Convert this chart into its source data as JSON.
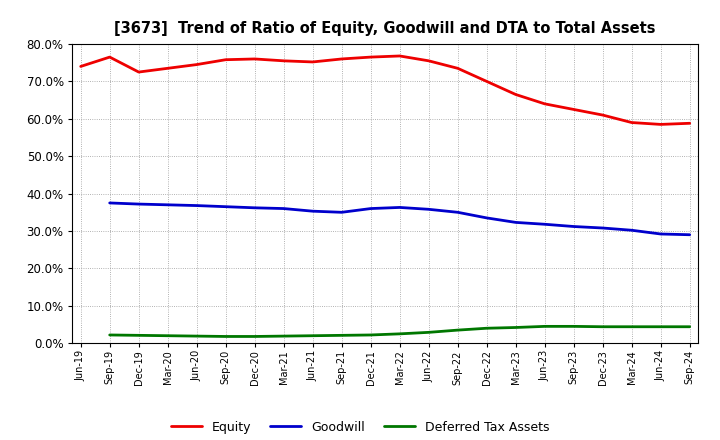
{
  "title": "[3673]  Trend of Ratio of Equity, Goodwill and DTA to Total Assets",
  "x_labels": [
    "Jun-19",
    "Sep-19",
    "Dec-19",
    "Mar-20",
    "Jun-20",
    "Sep-20",
    "Dec-20",
    "Mar-21",
    "Jun-21",
    "Sep-21",
    "Dec-21",
    "Mar-22",
    "Jun-22",
    "Sep-22",
    "Dec-22",
    "Mar-23",
    "Jun-23",
    "Sep-23",
    "Dec-23",
    "Mar-24",
    "Jun-24",
    "Sep-24"
  ],
  "equity": [
    74.0,
    76.5,
    72.5,
    73.5,
    74.5,
    75.8,
    76.0,
    75.5,
    75.2,
    76.0,
    76.5,
    76.8,
    75.5,
    73.5,
    70.0,
    66.5,
    64.0,
    62.5,
    61.0,
    59.0,
    58.5,
    58.8
  ],
  "goodwill": [
    null,
    37.5,
    37.2,
    37.0,
    36.8,
    36.5,
    36.2,
    36.0,
    35.3,
    35.0,
    36.0,
    36.3,
    35.8,
    35.0,
    33.5,
    32.3,
    31.8,
    31.2,
    30.8,
    30.2,
    29.2,
    29.0
  ],
  "dta": [
    null,
    2.2,
    2.1,
    2.0,
    1.9,
    1.8,
    1.8,
    1.9,
    2.0,
    2.1,
    2.2,
    2.5,
    2.9,
    3.5,
    4.0,
    4.2,
    4.5,
    4.5,
    4.4,
    4.4,
    4.4,
    4.4
  ],
  "equity_color": "#EE0000",
  "goodwill_color": "#0000CC",
  "dta_color": "#007700",
  "bg_color": "#FFFFFF",
  "grid_color": "#999999",
  "ylim": [
    0,
    80
  ],
  "yticks": [
    0,
    10,
    20,
    30,
    40,
    50,
    60,
    70,
    80
  ],
  "legend_labels": [
    "Equity",
    "Goodwill",
    "Deferred Tax Assets"
  ]
}
